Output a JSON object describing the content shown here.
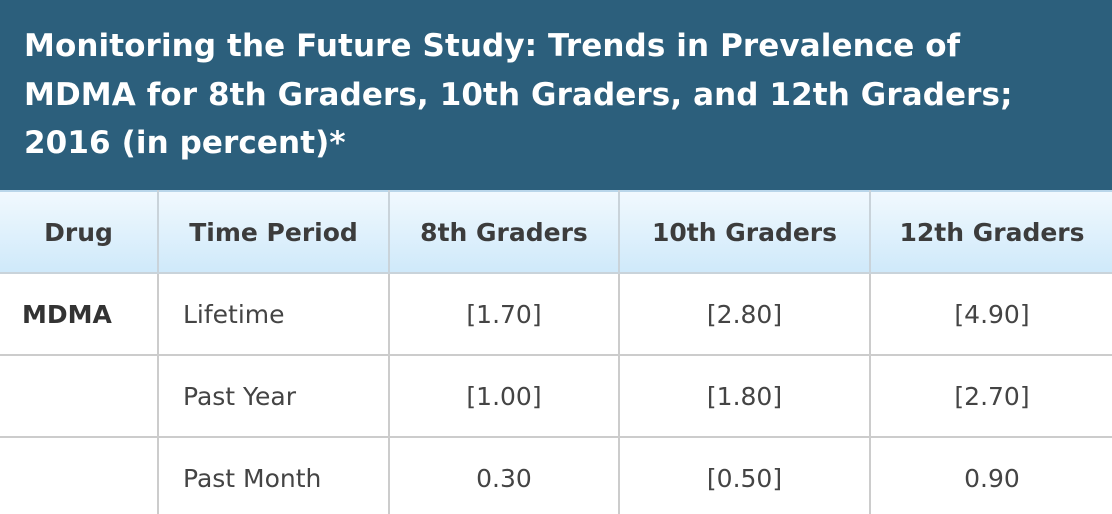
{
  "title": "Monitoring the Future Study: Trends in Prevalence of MDMA for 8th Graders, 10th Graders, and 12th Graders; 2016 (in percent)*",
  "title_lines": [
    "Monitoring the Future Study: Trends in Prevalence of",
    "MDMA for 8th Graders, 10th Graders, and 12th Graders;",
    "2016 (in percent)*"
  ],
  "colors": {
    "title_background": "#2c5f7c",
    "header_gradient_top": "#f1f9fe",
    "header_gradient_bottom": "#cfe9fa"
  },
  "table": {
    "headers": [
      "Drug",
      "Time Period",
      "8th Graders",
      "10th Graders",
      "12th Graders"
    ],
    "rows": [
      {
        "drug": "MDMA",
        "period": "Lifetime",
        "g8": "[1.70]",
        "g10": "[2.80]",
        "g12": "[4.90]"
      },
      {
        "drug": "",
        "period": "Past Year",
        "g8": "[1.00]",
        "g10": "[1.80]",
        "g12": "[2.70]"
      },
      {
        "drug": "",
        "period": "Past Month",
        "g8": "0.30",
        "g10": "[0.50]",
        "g12": "0.90"
      }
    ]
  }
}
